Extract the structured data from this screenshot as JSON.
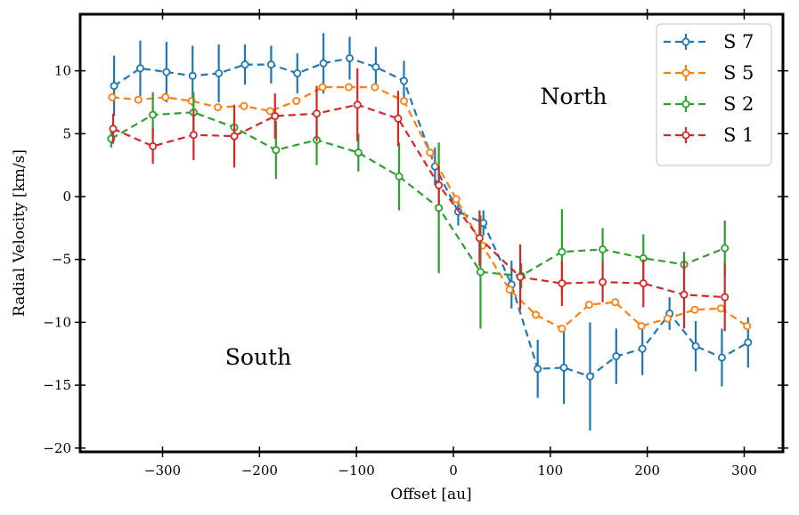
{
  "chart_data": {
    "type": "line",
    "xlabel": "Offset [au]",
    "ylabel": "Radial Velocity [km/s]",
    "xlim": [
      -385,
      340
    ],
    "ylim": [
      -20.3,
      14.5
    ],
    "xticks": [
      -300,
      -200,
      -100,
      0,
      100,
      200,
      300
    ],
    "yticks": [
      -20,
      -15,
      -10,
      -5,
      0,
      5,
      10
    ],
    "xtick_labels": [
      "−300",
      "−200",
      "−100",
      "0",
      "100",
      "200",
      "300"
    ],
    "ytick_labels": [
      "−20",
      "−15",
      "−10",
      "−5",
      "0",
      "5",
      "10"
    ],
    "annotations": [
      {
        "text": "North",
        "x": 125,
        "y": 8.0
      },
      {
        "text": "South",
        "x": -200,
        "y": -13.0
      }
    ],
    "legend": {
      "location": "top-right",
      "entries": [
        "S 7",
        "S 5",
        "S 2",
        "S 1"
      ]
    },
    "series": [
      {
        "name": "S 7",
        "color": "#1f77b4",
        "x": [
          -350,
          -323,
          -296,
          -269,
          -242,
          -215,
          -188,
          -161,
          -134,
          -107,
          -80,
          -51,
          -19,
          5,
          31,
          60,
          87,
          114,
          141,
          168,
          195,
          223,
          250,
          277,
          304
        ],
        "y": [
          8.8,
          10.2,
          9.9,
          9.6,
          9.8,
          10.5,
          10.5,
          9.8,
          10.6,
          11.0,
          10.3,
          9.2,
          2.4,
          -1.2,
          -2.1,
          -7.0,
          -13.7,
          -13.6,
          -14.3,
          -12.7,
          -12.1,
          -9.3,
          -11.9,
          -12.8,
          -11.6
        ],
        "err": [
          2.4,
          2.2,
          2.4,
          2.4,
          2.3,
          1.6,
          1.5,
          1.6,
          2.4,
          1.7,
          1.6,
          1.6,
          1.5,
          1.1,
          1.0,
          1.9,
          2.3,
          2.9,
          4.3,
          2.2,
          2.1,
          1.3,
          2.0,
          2.3,
          2.0
        ]
      },
      {
        "name": "S 5",
        "color": "#ff7f0e",
        "x": [
          -352,
          -325,
          -297,
          -270,
          -243,
          -216,
          -189,
          -162,
          -135,
          -108,
          -81,
          -51,
          -24,
          3,
          30,
          58,
          85,
          112,
          140,
          167,
          194,
          221,
          249,
          276,
          303
        ],
        "y": [
          7.9,
          7.7,
          7.9,
          7.6,
          7.1,
          7.2,
          6.8,
          7.6,
          8.7,
          8.7,
          8.7,
          7.6,
          3.5,
          -0.2,
          -3.9,
          -7.4,
          -9.4,
          -10.5,
          -8.6,
          -8.4,
          -10.3,
          -9.7,
          -9.0,
          -8.9,
          -10.3
        ]
      },
      {
        "name": "S 2",
        "color": "#2ca02c",
        "x": [
          -353,
          -310,
          -268,
          -226,
          -183,
          -141,
          -98,
          -56,
          -15,
          28,
          70,
          112,
          154,
          196,
          238,
          280
        ],
        "y": [
          4.6,
          6.5,
          6.7,
          5.5,
          3.7,
          4.5,
          3.5,
          1.6,
          -0.9,
          -6.0,
          -6.3,
          -4.4,
          -4.2,
          -4.9,
          -5.4,
          -4.1
        ],
        "err": [
          0.7,
          1.8,
          1.6,
          1.0,
          2.3,
          2.0,
          1.5,
          2.7,
          5.2,
          4.5,
          1.0,
          3.4,
          1.7,
          1.9,
          1.0,
          2.2
        ]
      },
      {
        "name": "S 1",
        "color": "#d62728",
        "x": [
          -351,
          -310,
          -268,
          -226,
          -184,
          -141,
          -99,
          -57,
          -15,
          27,
          69,
          112,
          154,
          196,
          238,
          280
        ],
        "y": [
          5.4,
          4.0,
          4.9,
          4.8,
          6.4,
          6.6,
          7.3,
          6.2,
          0.9,
          -3.3,
          -6.4,
          -6.9,
          -6.8,
          -6.9,
          -7.8,
          -8.0
        ],
        "err": [
          1.2,
          1.4,
          2.0,
          2.5,
          1.8,
          2.2,
          2.9,
          2.2,
          1.5,
          2.2,
          2.6,
          1.8,
          1.6,
          1.9,
          2.7,
          2.7
        ]
      }
    ]
  }
}
